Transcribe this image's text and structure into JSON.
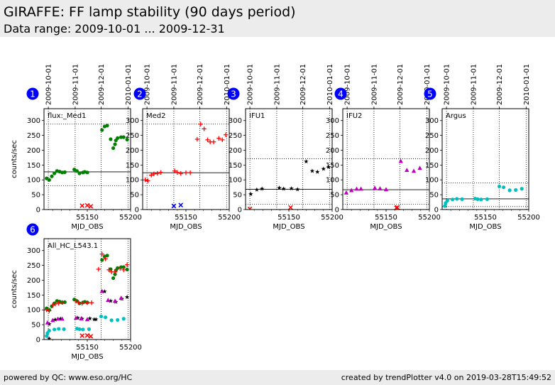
{
  "page": {
    "title": "GIRAFFE: FF lamp stability (90 days period)",
    "subtitle": "Data range: 2009-10-01 ... 2009-12-31",
    "footer_left": "powered by QC: www.eso.org/HC",
    "footer_right": "created by trendPlotter v4.0 on 2019-03-28T15:49:52"
  },
  "colors": {
    "green": "#007f00",
    "red": "#ff0000",
    "blue": "#0000ff",
    "black": "#000000",
    "magenta": "#bf00bf",
    "cyan": "#00bfbf",
    "badge": "#0000ff",
    "header_bg": "#ececec"
  },
  "chart_data": [
    {
      "type": "scatter",
      "panel": "1",
      "label": "flux:_Med1",
      "xlabel": "MJD_OBS",
      "ylabel": "counts/sec",
      "xlim": [
        55100,
        55200
      ],
      "ylim": [
        0,
        340
      ],
      "xticks": [
        55150,
        55200
      ],
      "yticks": [
        0,
        50,
        100,
        150,
        200,
        250,
        300
      ],
      "date_ticks": [
        {
          "label": "2009-10-01",
          "mjd": 55105
        },
        {
          "label": "2009-11-01",
          "mjd": 55136
        },
        {
          "label": "2009-12-01",
          "mjd": 55166
        },
        {
          "label": "2010-01-01",
          "mjd": 55197
        }
      ],
      "hline": 127,
      "dotted_y": [
        80,
        288
      ],
      "series": [
        {
          "color": "green",
          "marker": "circle",
          "x": [
            55103,
            55106,
            55109,
            55112,
            55115,
            55118,
            55121,
            55124,
            55135,
            55138,
            55141,
            55145,
            55147,
            55150,
            55167,
            55170,
            55173,
            55177,
            55180,
            55182,
            55183,
            55185,
            55189,
            55192,
            55196
          ],
          "y": [
            105,
            100,
            112,
            122,
            130,
            128,
            125,
            126,
            135,
            130,
            122,
            125,
            127,
            125,
            268,
            280,
            283,
            237,
            207,
            220,
            233,
            241,
            244,
            244,
            236
          ]
        },
        {
          "color": "red",
          "marker": "x",
          "x": [
            55144,
            55150,
            55154
          ],
          "y": [
            13,
            14,
            11
          ]
        }
      ]
    },
    {
      "type": "scatter",
      "panel": "2",
      "label": "Med2",
      "xlabel": "MJD_OBS",
      "ylabel": "",
      "xlim": [
        55100,
        55200
      ],
      "ylim": [
        0,
        340
      ],
      "xticks": [
        55150,
        55200
      ],
      "yticks": [
        0,
        50,
        100,
        150,
        200,
        250,
        300
      ],
      "date_ticks": [
        {
          "label": "2009-10-01",
          "mjd": 55105
        },
        {
          "label": "2009-11-01",
          "mjd": 55136
        },
        {
          "label": "2009-12-01",
          "mjd": 55166
        },
        {
          "label": "2010-01-01",
          "mjd": 55197
        }
      ],
      "hline": 124,
      "dotted_y": [
        80,
        288
      ],
      "series": [
        {
          "color": "red",
          "marker": "plus",
          "x": [
            55103,
            55106,
            55110,
            55113,
            55117,
            55121,
            55137,
            55140,
            55144,
            55150,
            55155,
            55163,
            55167,
            55171,
            55175,
            55178,
            55182,
            55188,
            55192,
            55196
          ],
          "y": [
            100,
            97,
            116,
            120,
            122,
            125,
            130,
            125,
            122,
            124,
            124,
            237,
            288,
            272,
            235,
            228,
            228,
            240,
            235,
            252
          ]
        },
        {
          "color": "blue",
          "marker": "x",
          "x": [
            55136,
            55144
          ],
          "y": [
            12,
            15
          ]
        }
      ]
    },
    {
      "type": "scatter",
      "panel": "3",
      "label": "IFU1",
      "xlabel": "MJD_OBS",
      "ylabel": "",
      "xlim": [
        55100,
        55200
      ],
      "ylim": [
        0,
        340
      ],
      "xticks": [
        55150,
        55200
      ],
      "yticks": [
        0,
        50,
        100,
        150,
        200,
        250,
        300
      ],
      "date_ticks": [
        {
          "label": "2009-10-01",
          "mjd": 55105
        },
        {
          "label": "2009-11-01",
          "mjd": 55136
        },
        {
          "label": "2009-12-01",
          "mjd": 55166
        },
        {
          "label": "2010-01-01",
          "mjd": 55197
        }
      ],
      "hline": 68,
      "dotted_y": [
        18,
        171
      ],
      "series": [
        {
          "color": "black",
          "marker": "star",
          "x": [
            55106,
            55113,
            55119,
            55139,
            55144,
            55153,
            55160,
            55170,
            55177,
            55183,
            55190,
            55196
          ],
          "y": [
            52,
            67,
            70,
            73,
            70,
            71,
            68,
            162,
            130,
            127,
            137,
            143
          ]
        },
        {
          "color": "red",
          "marker": "x",
          "x": [
            55105,
            55152
          ],
          "y": [
            2,
            7
          ]
        }
      ]
    },
    {
      "type": "scatter",
      "panel": "4",
      "label": "IFU2",
      "xlabel": "MJD_OBS",
      "ylabel": "",
      "xlim": [
        55100,
        55200
      ],
      "ylim": [
        0,
        340
      ],
      "xticks": [
        55150,
        55200
      ],
      "yticks": [
        0,
        50,
        100,
        150,
        200,
        250,
        300
      ],
      "date_ticks": [
        {
          "label": "2009-10-01",
          "mjd": 55105
        },
        {
          "label": "2009-11-01",
          "mjd": 55136
        },
        {
          "label": "2009-12-01",
          "mjd": 55166
        },
        {
          "label": "2010-01-01",
          "mjd": 55197
        }
      ],
      "hline": 67,
      "dotted_y": [
        18,
        171
      ],
      "series": [
        {
          "color": "magenta",
          "marker": "triangle",
          "x": [
            55104,
            55110,
            55116,
            55121,
            55137,
            55143,
            55150,
            55167,
            55174,
            55182,
            55189
          ],
          "y": [
            57,
            65,
            70,
            70,
            73,
            71,
            68,
            163,
            133,
            130,
            140
          ]
        },
        {
          "color": "red",
          "marker": "x",
          "x": [
            55162,
            55163
          ],
          "y": [
            6,
            7
          ]
        }
      ]
    },
    {
      "type": "scatter",
      "panel": "5",
      "label": "Argus",
      "xlabel": "MJD_OBS",
      "ylabel": "",
      "xlim": [
        55100,
        55200
      ],
      "ylim": [
        0,
        340
      ],
      "xticks": [
        55150,
        55200
      ],
      "yticks": [
        0,
        50,
        100,
        150,
        200,
        250,
        300
      ],
      "date_ticks": [
        {
          "label": "2009-10-01",
          "mjd": 55105
        },
        {
          "label": "2009-11-01",
          "mjd": 55136
        },
        {
          "label": "2009-12-01",
          "mjd": 55166
        },
        {
          "label": "2010-01-01",
          "mjd": 55197
        }
      ],
      "hline": 36,
      "dotted_y": [
        10,
        90
      ],
      "series": [
        {
          "color": "cyan",
          "marker": "circle",
          "x": [
            55103,
            55104,
            55106,
            55112,
            55117,
            55123,
            55138,
            55141,
            55145,
            55152,
            55166,
            55171,
            55178,
            55185,
            55192
          ],
          "y": [
            12,
            22,
            30,
            34,
            36,
            35,
            37,
            35,
            34,
            35,
            78,
            75,
            65,
            66,
            70
          ]
        }
      ]
    },
    {
      "type": "scatter",
      "panel": "6",
      "label": "All_HC_L543.1",
      "xlabel": "MJD_OBS",
      "ylabel": "counts/sec",
      "xlim": [
        55100,
        55200
      ],
      "ylim": [
        0,
        340
      ],
      "xticks": [
        55150,
        55200
      ],
      "yticks": [
        0,
        50,
        100,
        150,
        200,
        250,
        300
      ],
      "date_ticks": [
        {
          "label": "2009-10-01",
          "mjd": 55105
        },
        {
          "label": "2009-11-01",
          "mjd": 55136
        },
        {
          "label": "2009-12-01",
          "mjd": 55166
        },
        {
          "label": "2010-01-01",
          "mjd": 55197
        }
      ],
      "hline": null,
      "dotted_y": [],
      "series": [
        {
          "color": "green",
          "marker": "circle",
          "x": [
            55103,
            55106,
            55109,
            55112,
            55115,
            55118,
            55121,
            55124,
            55135,
            55138,
            55141,
            55145,
            55147,
            55150,
            55167,
            55170,
            55173,
            55177,
            55180,
            55182,
            55183,
            55185,
            55189,
            55192,
            55196
          ],
          "y": [
            105,
            100,
            112,
            122,
            130,
            128,
            125,
            126,
            135,
            130,
            122,
            125,
            127,
            125,
            268,
            280,
            283,
            237,
            207,
            220,
            233,
            241,
            244,
            244,
            236
          ]
        },
        {
          "color": "red",
          "marker": "plus",
          "x": [
            55103,
            55106,
            55110,
            55113,
            55117,
            55121,
            55137,
            55140,
            55144,
            55150,
            55155,
            55163,
            55167,
            55171,
            55175,
            55178,
            55182,
            55188,
            55192,
            55196
          ],
          "y": [
            100,
            97,
            116,
            120,
            122,
            125,
            130,
            125,
            122,
            124,
            124,
            237,
            288,
            272,
            235,
            228,
            228,
            240,
            235,
            252
          ]
        },
        {
          "color": "black",
          "marker": "star",
          "x": [
            55106,
            55113,
            55119,
            55139,
            55144,
            55153,
            55160,
            55170,
            55177,
            55183,
            55190,
            55196
          ],
          "y": [
            52,
            67,
            70,
            73,
            70,
            71,
            68,
            162,
            130,
            127,
            137,
            143
          ]
        },
        {
          "color": "magenta",
          "marker": "triangle",
          "x": [
            55104,
            55110,
            55116,
            55121,
            55137,
            55143,
            55150,
            55167,
            55174,
            55182,
            55189
          ],
          "y": [
            57,
            65,
            70,
            70,
            73,
            71,
            68,
            163,
            133,
            130,
            140
          ]
        },
        {
          "color": "cyan",
          "marker": "circle",
          "x": [
            55103,
            55104,
            55106,
            55112,
            55117,
            55123,
            55138,
            55141,
            55145,
            55152,
            55166,
            55171,
            55178,
            55185,
            55192
          ],
          "y": [
            12,
            22,
            30,
            34,
            36,
            35,
            37,
            35,
            34,
            35,
            78,
            75,
            65,
            66,
            70
          ]
        },
        {
          "color": "red",
          "marker": "x",
          "x": [
            55144,
            55150,
            55154
          ],
          "y": [
            13,
            14,
            11
          ]
        },
        {
          "color": "black",
          "marker": "star",
          "x": [
            55106,
            55158
          ],
          "y": [
            3,
            68
          ]
        }
      ]
    }
  ]
}
